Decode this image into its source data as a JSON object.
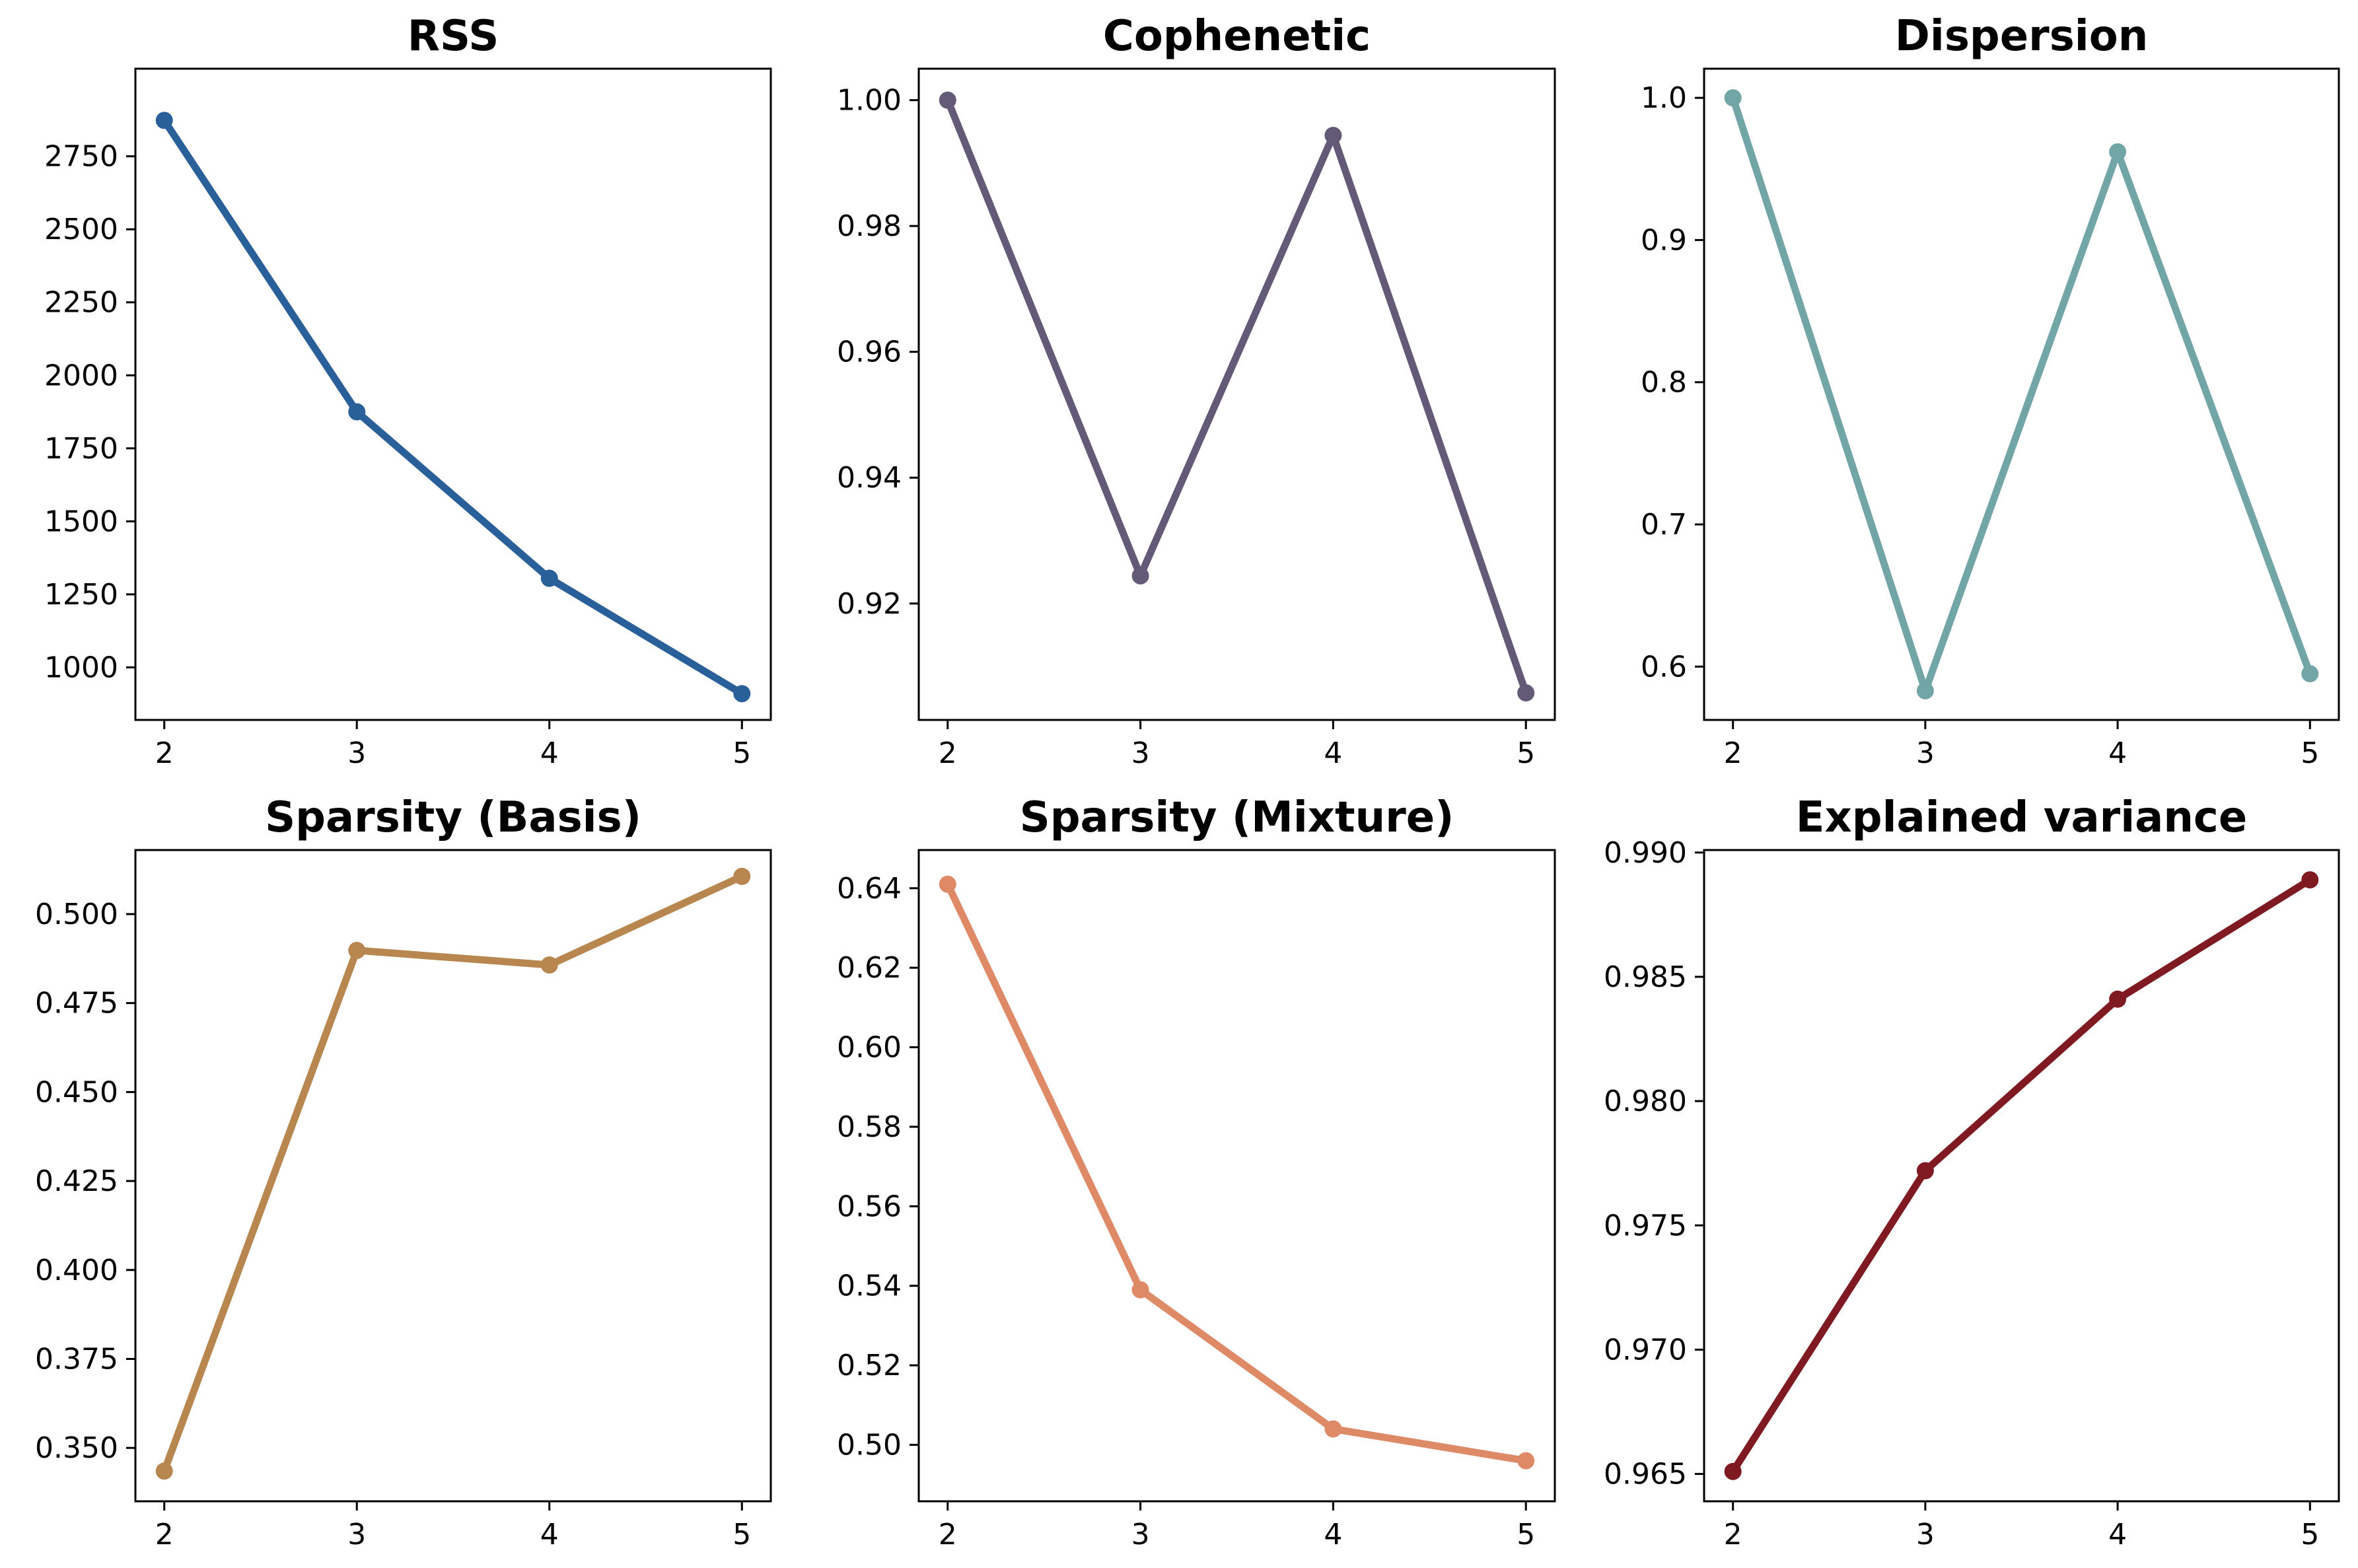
{
  "chart_data": [
    {
      "type": "line",
      "title": "RSS",
      "color": "#2a6099",
      "x": [
        2,
        3,
        4,
        5
      ],
      "y": [
        2873,
        1875,
        1305,
        910
      ],
      "ylim": [
        820,
        3050
      ],
      "yticks": [
        1000,
        1250,
        1500,
        1750,
        2000,
        2250,
        2500,
        2750
      ],
      "ytick_labels": [
        "1000",
        "1250",
        "1500",
        "1750",
        "2000",
        "2250",
        "2500",
        "2750"
      ],
      "xticks": [
        2,
        3,
        4,
        5
      ],
      "xtick_labels": [
        "2",
        "3",
        "4",
        "5"
      ]
    },
    {
      "type": "line",
      "title": "Cophenetic",
      "color": "#635a77",
      "x": [
        2,
        3,
        4,
        5
      ],
      "y": [
        1.0,
        0.9244,
        0.9944,
        0.9058
      ],
      "ylim": [
        0.9015,
        1.005
      ],
      "yticks": [
        0.92,
        0.94,
        0.96,
        0.98,
        1.0
      ],
      "ytick_labels": [
        "0.92",
        "0.94",
        "0.96",
        "0.98",
        "1.00"
      ],
      "xticks": [
        2,
        3,
        4,
        5
      ],
      "xtick_labels": [
        "2",
        "3",
        "4",
        "5"
      ]
    },
    {
      "type": "line",
      "title": "Dispersion",
      "color": "#72a5a6",
      "x": [
        2,
        3,
        4,
        5
      ],
      "y": [
        1.0,
        0.583,
        0.962,
        0.595
      ],
      "ylim": [
        0.5625,
        1.0205
      ],
      "yticks": [
        0.6,
        0.7,
        0.8,
        0.9,
        1.0
      ],
      "ytick_labels": [
        "0.6",
        "0.7",
        "0.8",
        "0.9",
        "1.0"
      ],
      "xticks": [
        2,
        3,
        4,
        5
      ],
      "xtick_labels": [
        "2",
        "3",
        "4",
        "5"
      ]
    },
    {
      "type": "line",
      "title": "Sparsity (Basis)",
      "color": "#b8864f",
      "x": [
        2,
        3,
        4,
        5
      ],
      "y": [
        0.3435,
        0.4898,
        0.4857,
        0.5106
      ],
      "ylim": [
        0.335,
        0.518
      ],
      "yticks": [
        0.35,
        0.375,
        0.4,
        0.425,
        0.45,
        0.475,
        0.5
      ],
      "ytick_labels": [
        "0.350",
        "0.375",
        "0.400",
        "0.425",
        "0.450",
        "0.475",
        "0.500"
      ],
      "xticks": [
        2,
        3,
        4,
        5
      ],
      "xtick_labels": [
        "2",
        "3",
        "4",
        "5"
      ]
    },
    {
      "type": "line",
      "title": "Sparsity (Mixture)",
      "color": "#df8a67",
      "x": [
        2,
        3,
        4,
        5
      ],
      "y": [
        0.641,
        0.539,
        0.504,
        0.496
      ],
      "ylim": [
        0.4858,
        0.6496
      ],
      "yticks": [
        0.5,
        0.52,
        0.54,
        0.56,
        0.58,
        0.6,
        0.62,
        0.64
      ],
      "ytick_labels": [
        "0.50",
        "0.52",
        "0.54",
        "0.56",
        "0.58",
        "0.60",
        "0.62",
        "0.64"
      ],
      "xticks": [
        2,
        3,
        4,
        5
      ],
      "xtick_labels": [
        "2",
        "3",
        "4",
        "5"
      ]
    },
    {
      "type": "line",
      "title": "Explained variance",
      "color": "#7f1a22",
      "x": [
        2,
        3,
        4,
        5
      ],
      "y": [
        0.9651,
        0.9772,
        0.9841,
        0.9889
      ],
      "ylim": [
        0.9639,
        0.9901
      ],
      "yticks": [
        0.965,
        0.97,
        0.975,
        0.98,
        0.985,
        0.99
      ],
      "ytick_labels": [
        "0.965",
        "0.970",
        "0.975",
        "0.980",
        "0.985",
        "0.990"
      ],
      "xticks": [
        2,
        3,
        4,
        5
      ],
      "xtick_labels": [
        "2",
        "3",
        "4",
        "5"
      ]
    }
  ]
}
